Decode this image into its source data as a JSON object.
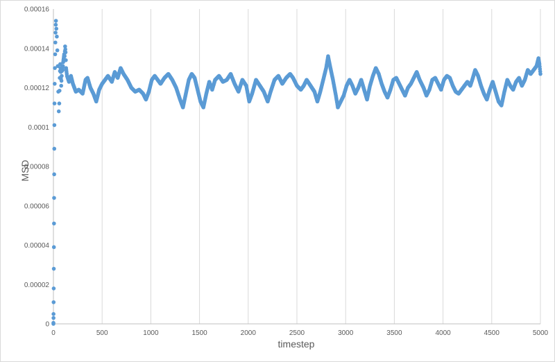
{
  "chart_data": {
    "type": "scatter",
    "title": "",
    "xlabel": "timestep",
    "ylabel": "MSD",
    "xlim": [
      0,
      5000
    ],
    "ylim": [
      0,
      0.00016
    ],
    "x_ticks": [
      "0",
      "500",
      "1000",
      "1500",
      "2000",
      "2500",
      "3000",
      "3500",
      "4000",
      "4500",
      "5000"
    ],
    "y_ticks": [
      "0",
      "0.00002",
      "0.00004",
      "0.00006",
      "0.00008",
      "0.0001",
      "0.00012",
      "0.00014",
      "0.00016"
    ],
    "grid": "vertical",
    "legend": "none",
    "marker_color": "#5b9bd5",
    "series": [
      {
        "marker": "circle",
        "points": [
          [
            0,
            0
          ],
          [
            0,
            5e-07
          ],
          [
            1,
            3e-06
          ],
          [
            1,
            5e-06
          ],
          [
            2,
            1.1e-05
          ],
          [
            3,
            1.8e-05
          ],
          [
            4,
            2.8e-05
          ],
          [
            5,
            3.9e-05
          ],
          [
            6,
            5.1e-05
          ],
          [
            7,
            6.4e-05
          ],
          [
            8,
            7.6e-05
          ],
          [
            9,
            8.9e-05
          ],
          [
            10,
            0.000101
          ],
          [
            11,
            0.000112
          ],
          [
            13,
            0.000122
          ],
          [
            15,
            0.00013
          ],
          [
            18,
            0.000137
          ],
          [
            20,
            0.000143
          ],
          [
            22,
            0.000148
          ],
          [
            24,
            0.000152
          ],
          [
            26,
            0.000154
          ],
          [
            30,
            0.00015
          ],
          [
            35,
            0.000146
          ],
          [
            40,
            0.000139
          ],
          [
            45,
            0.000131
          ],
          [
            50,
            0.000118
          ],
          [
            55,
            0.000108
          ],
          [
            60,
            0.000112
          ],
          [
            65,
            0.000125
          ],
          [
            70,
            0.000132
          ],
          [
            75,
            0.000128
          ],
          [
            80,
            0.000121
          ],
          [
            85,
            0.000126
          ],
          [
            90,
            0.000131
          ],
          [
            95,
            0.000129
          ],
          [
            100,
            0.000133
          ],
          [
            105,
            0.000135
          ],
          [
            110,
            0.000137
          ],
          [
            115,
            0.000136
          ],
          [
            120,
            0.000141
          ],
          [
            125,
            0.000138
          ],
          [
            130,
            0.00013
          ],
          [
            140,
            0.000126
          ],
          [
            160,
            0.000123
          ],
          [
            180,
            0.000126
          ],
          [
            200,
            0.000122
          ],
          [
            230,
            0.000118
          ],
          [
            260,
            0.000119
          ],
          [
            300,
            0.000117
          ],
          [
            330,
            0.000124
          ],
          [
            350,
            0.000125
          ],
          [
            380,
            0.00012
          ],
          [
            410,
            0.000117
          ],
          [
            440,
            0.000113
          ],
          [
            470,
            0.000119
          ],
          [
            500,
            0.000122
          ],
          [
            530,
            0.000124
          ],
          [
            560,
            0.000126
          ],
          [
            600,
            0.000123
          ],
          [
            630,
            0.000128
          ],
          [
            660,
            0.000125
          ],
          [
            690,
            0.00013
          ],
          [
            720,
            0.000127
          ],
          [
            760,
            0.000124
          ],
          [
            800,
            0.00012
          ],
          [
            840,
            0.000118
          ],
          [
            880,
            0.000119
          ],
          [
            920,
            0.000117
          ],
          [
            950,
            0.000114
          ],
          [
            980,
            0.000118
          ],
          [
            1010,
            0.000124
          ],
          [
            1040,
            0.000126
          ],
          [
            1070,
            0.000124
          ],
          [
            1100,
            0.000122
          ],
          [
            1140,
            0.000125
          ],
          [
            1180,
            0.000127
          ],
          [
            1220,
            0.000124
          ],
          [
            1260,
            0.00012
          ],
          [
            1300,
            0.000114
          ],
          [
            1330,
            0.00011
          ],
          [
            1360,
            0.000117
          ],
          [
            1390,
            0.000124
          ],
          [
            1420,
            0.000127
          ],
          [
            1450,
            0.000125
          ],
          [
            1480,
            0.000119
          ],
          [
            1510,
            0.000113
          ],
          [
            1540,
            0.00011
          ],
          [
            1570,
            0.000117
          ],
          [
            1600,
            0.000123
          ],
          [
            1630,
            0.000119
          ],
          [
            1660,
            0.000124
          ],
          [
            1700,
            0.000126
          ],
          [
            1740,
            0.000123
          ],
          [
            1780,
            0.000124
          ],
          [
            1820,
            0.000127
          ],
          [
            1860,
            0.000122
          ],
          [
            1900,
            0.000118
          ],
          [
            1940,
            0.000124
          ],
          [
            1980,
            0.000121
          ],
          [
            2010,
            0.000113
          ],
          [
            2040,
            0.000117
          ],
          [
            2080,
            0.000124
          ],
          [
            2120,
            0.000121
          ],
          [
            2160,
            0.000118
          ],
          [
            2200,
            0.000113
          ],
          [
            2230,
            0.000118
          ],
          [
            2270,
            0.000124
          ],
          [
            2310,
            0.000126
          ],
          [
            2350,
            0.000122
          ],
          [
            2390,
            0.000125
          ],
          [
            2430,
            0.000127
          ],
          [
            2460,
            0.000125
          ],
          [
            2500,
            0.000121
          ],
          [
            2540,
            0.000119
          ],
          [
            2570,
            0.000121
          ],
          [
            2600,
            0.000124
          ],
          [
            2640,
            0.000121
          ],
          [
            2680,
            0.000118
          ],
          [
            2710,
            0.000113
          ],
          [
            2740,
            0.000118
          ],
          [
            2770,
            0.000124
          ],
          [
            2800,
            0.00013
          ],
          [
            2820,
            0.000136
          ],
          [
            2840,
            0.000131
          ],
          [
            2870,
            0.000124
          ],
          [
            2900,
            0.000116
          ],
          [
            2920,
            0.00011
          ],
          [
            2950,
            0.000113
          ],
          [
            2980,
            0.000116
          ],
          [
            3010,
            0.000121
          ],
          [
            3040,
            0.000124
          ],
          [
            3070,
            0.000121
          ],
          [
            3100,
            0.000117
          ],
          [
            3130,
            0.00012
          ],
          [
            3160,
            0.000124
          ],
          [
            3190,
            0.000119
          ],
          [
            3220,
            0.000114
          ],
          [
            3250,
            0.000121
          ],
          [
            3280,
            0.000126
          ],
          [
            3310,
            0.00013
          ],
          [
            3340,
            0.000127
          ],
          [
            3370,
            0.000122
          ],
          [
            3400,
            0.000118
          ],
          [
            3430,
            0.000115
          ],
          [
            3460,
            0.000119
          ],
          [
            3490,
            0.000124
          ],
          [
            3520,
            0.000125
          ],
          [
            3550,
            0.000122
          ],
          [
            3580,
            0.000119
          ],
          [
            3610,
            0.000116
          ],
          [
            3640,
            0.00012
          ],
          [
            3670,
            0.000122
          ],
          [
            3700,
            0.000125
          ],
          [
            3730,
            0.000128
          ],
          [
            3760,
            0.000124
          ],
          [
            3800,
            0.00012
          ],
          [
            3830,
            0.000116
          ],
          [
            3860,
            0.000119
          ],
          [
            3890,
            0.000124
          ],
          [
            3920,
            0.000125
          ],
          [
            3950,
            0.000122
          ],
          [
            3980,
            0.000119
          ],
          [
            4010,
            0.000124
          ],
          [
            4040,
            0.000126
          ],
          [
            4070,
            0.000125
          ],
          [
            4100,
            0.000121
          ],
          [
            4130,
            0.000118
          ],
          [
            4160,
            0.000117
          ],
          [
            4190,
            0.000119
          ],
          [
            4220,
            0.000121
          ],
          [
            4250,
            0.000123
          ],
          [
            4280,
            0.000121
          ],
          [
            4300,
            0.000124
          ],
          [
            4330,
            0.000129
          ],
          [
            4360,
            0.000126
          ],
          [
            4390,
            0.000121
          ],
          [
            4420,
            0.000117
          ],
          [
            4450,
            0.000114
          ],
          [
            4480,
            0.000119
          ],
          [
            4510,
            0.000123
          ],
          [
            4540,
            0.000118
          ],
          [
            4570,
            0.000113
          ],
          [
            4600,
            0.000111
          ],
          [
            4630,
            0.000118
          ],
          [
            4660,
            0.000124
          ],
          [
            4690,
            0.000121
          ],
          [
            4720,
            0.000119
          ],
          [
            4750,
            0.000123
          ],
          [
            4780,
            0.000125
          ],
          [
            4810,
            0.000121
          ],
          [
            4840,
            0.000124
          ],
          [
            4870,
            0.000129
          ],
          [
            4900,
            0.000127
          ],
          [
            4930,
            0.000129
          ],
          [
            4960,
            0.000131
          ],
          [
            4980,
            0.000135
          ],
          [
            4990,
            0.000132
          ],
          [
            5000,
            0.000127
          ]
        ]
      }
    ]
  }
}
